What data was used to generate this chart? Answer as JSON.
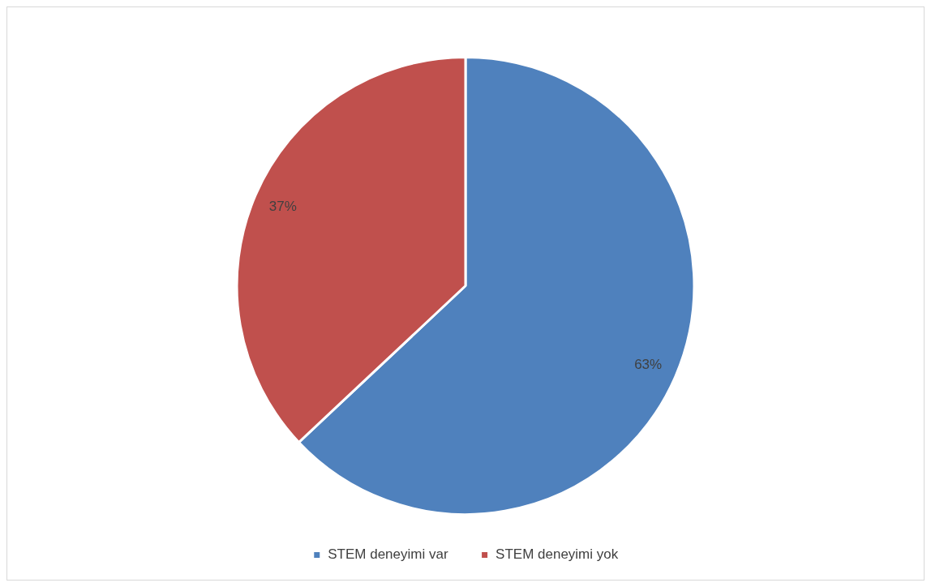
{
  "chart_data": {
    "type": "pie",
    "categories": [
      "STEM deneyimi var",
      "STEM deneyimi yok"
    ],
    "values": [
      63,
      37
    ],
    "colors": [
      "#4f81bd",
      "#c0504d"
    ],
    "value_labels": [
      "63%",
      "37%"
    ],
    "legend": "bottom"
  }
}
